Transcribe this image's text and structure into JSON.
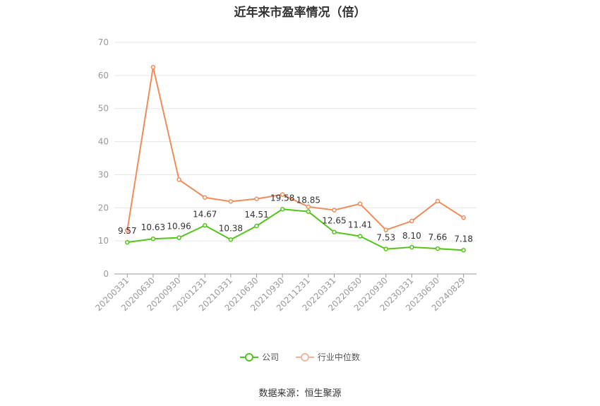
{
  "chart_data": {
    "type": "line",
    "title": "近年来市盈率情况（倍）",
    "categories": [
      "20200331",
      "20200630",
      "20200930",
      "20201231",
      "20210331",
      "20210630",
      "20210930",
      "20211231",
      "20220331",
      "20220630",
      "20220930",
      "20230331",
      "20230630",
      "20240829"
    ],
    "ylim": [
      0,
      70
    ],
    "yticks": [
      0,
      10,
      20,
      30,
      40,
      50,
      60,
      70
    ],
    "grid": true,
    "legend_position": "bottom",
    "series": [
      {
        "name": "公司",
        "color": "#52c41a",
        "values": [
          9.57,
          10.63,
          10.96,
          14.67,
          10.38,
          14.51,
          19.58,
          18.85,
          12.65,
          11.41,
          7.53,
          8.1,
          7.66,
          7.18
        ],
        "labels": [
          "9.57",
          "10.63",
          "10.96",
          "14.67",
          "10.38",
          "14.51",
          "19.58",
          "18.85",
          "12.65",
          "11.41",
          "7.53",
          "8.10",
          "7.66",
          "7.18"
        ]
      },
      {
        "name": "行业中位数",
        "color": "#f08c5a",
        "values": [
          13.2,
          62.5,
          28.5,
          23.1,
          21.9,
          22.7,
          24.0,
          20.3,
          19.3,
          21.2,
          13.3,
          16.0,
          22.0,
          17.0
        ]
      }
    ]
  },
  "source": "数据来源：恒生聚源"
}
